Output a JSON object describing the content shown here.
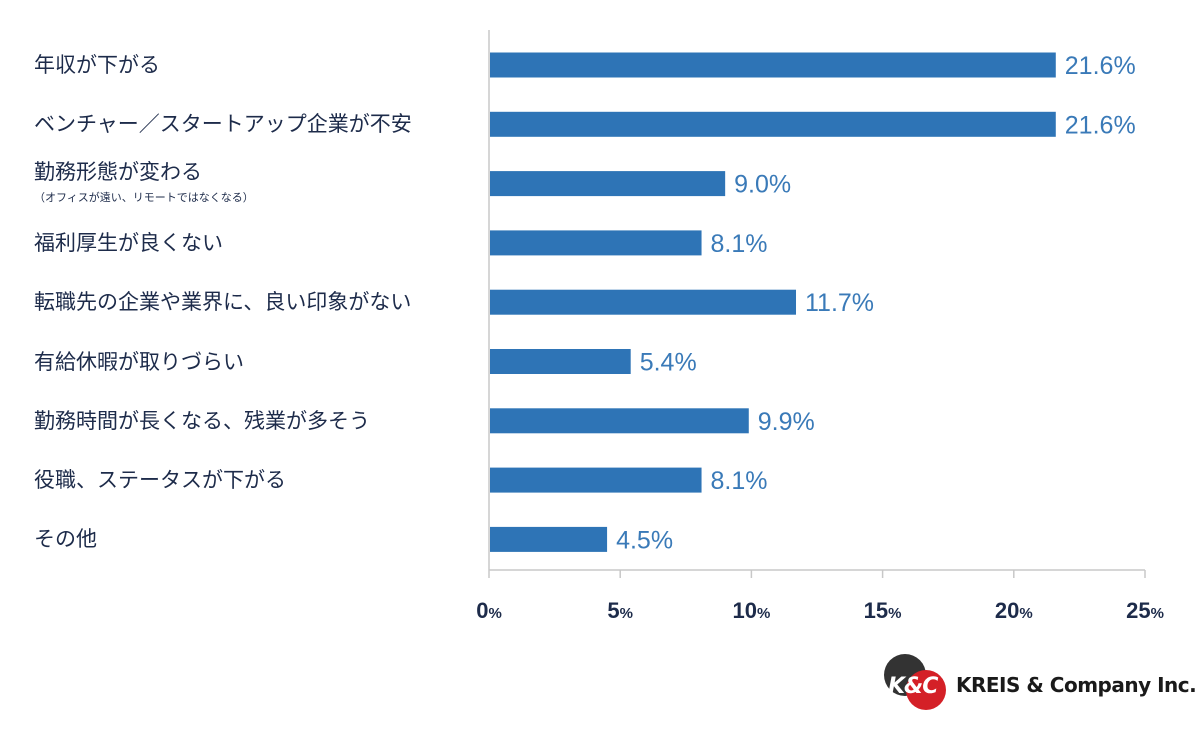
{
  "chart_data": {
    "type": "bar",
    "orientation": "horizontal",
    "categories": [
      "年収が下がる",
      "ベンチャー／スタートアップ企業が不安",
      "勤務形態が変わる",
      "福利厚生が良くない",
      "転職先の企業や業界に、良い印象がない",
      "有給休暇が取りづらい",
      "勤務時間が長くなる、残業が多そう",
      "役職、ステータスが下がる",
      "その他"
    ],
    "category_notes": [
      "",
      "",
      "（オフィスが遠い、リモートではなくなる）",
      "",
      "",
      "",
      "",
      "",
      ""
    ],
    "values": [
      21.6,
      21.6,
      9.0,
      8.1,
      11.7,
      5.4,
      9.9,
      8.1,
      4.5
    ],
    "value_labels": [
      "21.6%",
      "21.6%",
      "9.0%",
      "8.1%",
      "11.7%",
      "5.4%",
      "9.9%",
      "8.1%",
      "4.5%"
    ],
    "xlim": [
      0,
      25
    ],
    "xticks": [
      0,
      5,
      10,
      15,
      20,
      25
    ],
    "tick_suffix": "%",
    "bar_color": "#2e74b6",
    "label_color": "#3a7ab8",
    "axis_color": "#c8c8c8",
    "text_color": "#1d2b4a"
  },
  "logo": {
    "mark": "K&C",
    "text": "KREIS & Company Inc."
  }
}
